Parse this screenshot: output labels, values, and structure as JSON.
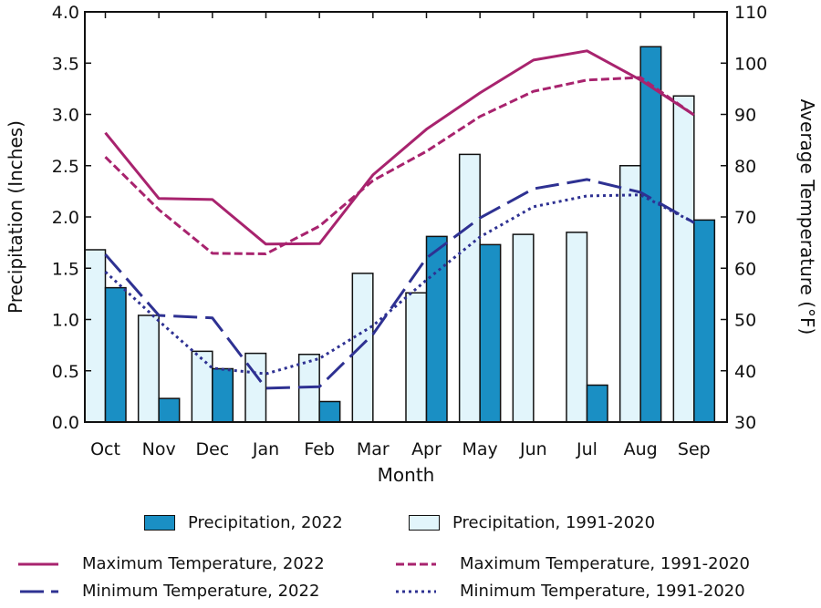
{
  "chart_data": {
    "type": "bar",
    "title": "",
    "xlabel": "Month",
    "ylabel": "Precipitation (Inches)",
    "y2label": "Average Temperature (°F)",
    "ylim": [
      0,
      4.0
    ],
    "y2lim": [
      30,
      110
    ],
    "yticks": [
      "0.0",
      "0.5",
      "1.0",
      "1.5",
      "2.0",
      "2.5",
      "3.0",
      "3.5",
      "4.0"
    ],
    "y2ticks": [
      "30",
      "40",
      "50",
      "60",
      "70",
      "80",
      "90",
      "100",
      "110"
    ],
    "categories": [
      "Oct",
      "Nov",
      "Dec",
      "Jan",
      "Feb",
      "Mar",
      "Apr",
      "May",
      "Jun",
      "Jul",
      "Aug",
      "Sep"
    ],
    "grid": false,
    "legend_placement": "bottom",
    "series": [
      {
        "name": "Precipitation, 1991-2020",
        "kind": "bar",
        "axis": "left",
        "color": "#e2f5fb",
        "values": [
          1.68,
          1.04,
          0.69,
          0.67,
          0.66,
          1.45,
          1.26,
          2.61,
          1.83,
          1.85,
          2.5,
          3.18
        ]
      },
      {
        "name": "Precipitation, 2022",
        "kind": "bar",
        "axis": "left",
        "color": "#1a8fc4",
        "values": [
          1.31,
          0.23,
          0.52,
          0.0,
          0.2,
          0.0,
          1.81,
          1.73,
          0.0,
          0.36,
          3.66,
          1.97
        ]
      },
      {
        "name": "Maximum Temperature, 2022",
        "kind": "line",
        "style": "solid",
        "axis": "right",
        "color": "#a8236e",
        "values": [
          86.4,
          73.6,
          73.4,
          64.7,
          64.8,
          78.2,
          87.1,
          94.2,
          100.6,
          102.4,
          96.7,
          89.9
        ]
      },
      {
        "name": "Maximum Temperature, 1991-2020",
        "kind": "line",
        "style": "dashed",
        "axis": "right",
        "color": "#a8236e",
        "values": [
          81.7,
          71.4,
          62.9,
          62.8,
          68.2,
          77.1,
          82.8,
          89.6,
          94.5,
          96.7,
          97.2,
          89.9
        ]
      },
      {
        "name": "Minimum Temperature, 2022",
        "kind": "line",
        "style": "long-dash",
        "axis": "right",
        "color": "#2e3192",
        "values": [
          62.7,
          50.8,
          50.3,
          36.6,
          36.9,
          47.1,
          62.0,
          69.8,
          75.5,
          77.3,
          74.8,
          68.9
        ]
      },
      {
        "name": "Minimum Temperature, 1991-2020",
        "kind": "line",
        "style": "dotted",
        "axis": "right",
        "color": "#2e3192",
        "values": [
          59.3,
          49.7,
          40.5,
          39.4,
          42.4,
          48.8,
          57.7,
          66.1,
          72.0,
          74.1,
          74.3,
          68.9
        ]
      }
    ]
  },
  "legend": {
    "precip_2022": "Precipitation, 2022",
    "precip_normal": "Precipitation, 1991-2020",
    "max_2022": "Maximum Temperature, 2022",
    "max_normal": "Maximum Temperature, 1991-2020",
    "min_2022": "Minimum Temperature, 2022",
    "min_normal": "Minimum Temperature, 1991-2020"
  }
}
